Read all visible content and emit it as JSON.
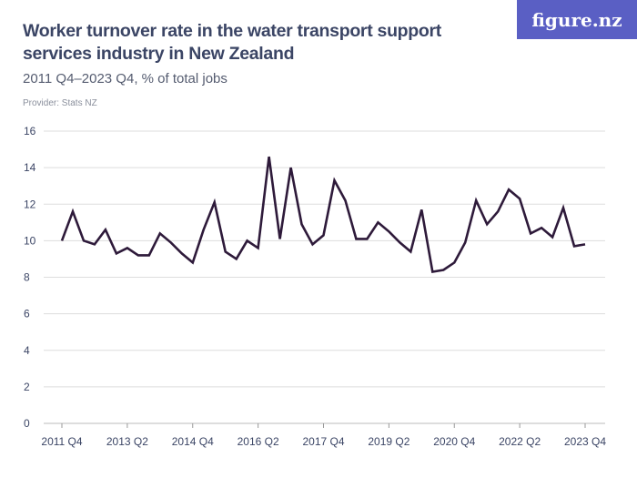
{
  "title": "Worker turnover rate in the water transport support services industry in New Zealand",
  "subtitle": "2011 Q4–2023 Q4, % of total jobs",
  "provider": "Provider: Stats NZ",
  "logo": "figure.nz",
  "colors": {
    "line": "#2e1a3a",
    "grid": "#dddddd",
    "logo_bg": "#5a5fc4"
  },
  "chart_data": {
    "type": "line",
    "grid": true,
    "ylim": [
      0,
      16
    ],
    "yticks": [
      0,
      2,
      4,
      6,
      8,
      10,
      12,
      14,
      16
    ],
    "xtick_labels": [
      "2011 Q4",
      "2013 Q2",
      "2014 Q4",
      "2016 Q2",
      "2017 Q4",
      "2019 Q2",
      "2020 Q4",
      "2022 Q2",
      "2023 Q4"
    ],
    "x_start": "2011 Q4",
    "x_end": "2023 Q4",
    "values": [
      10.0,
      11.6,
      10.0,
      9.8,
      10.6,
      9.3,
      9.6,
      9.2,
      9.2,
      10.4,
      9.9,
      9.3,
      8.8,
      10.6,
      12.1,
      9.4,
      9.0,
      10.0,
      9.6,
      14.6,
      10.1,
      14.0,
      10.9,
      9.8,
      10.3,
      13.3,
      12.2,
      10.1,
      10.1,
      11.0,
      10.5,
      9.9,
      9.4,
      11.7,
      8.3,
      8.4,
      8.8,
      9.9,
      12.2,
      10.9,
      11.6,
      12.8,
      12.3,
      10.4,
      10.7,
      10.2,
      11.8,
      9.7,
      9.8
    ]
  }
}
